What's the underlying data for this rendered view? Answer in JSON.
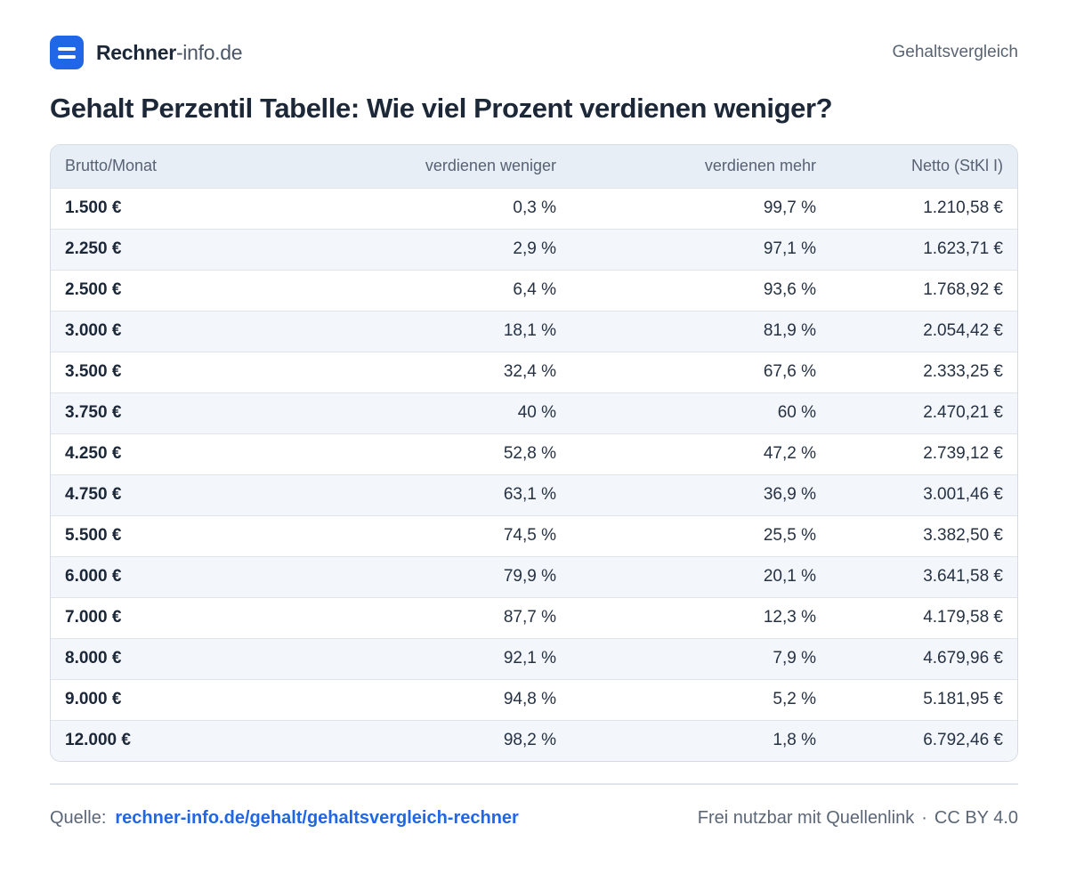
{
  "header": {
    "brand_strong": "Rechner",
    "brand_light": "-info.de",
    "nav_link": "Gehaltsvergleich"
  },
  "title": "Gehalt Perzentil Tabelle: Wie viel Prozent verdienen weniger?",
  "table": {
    "columns": [
      "Brutto/Monat",
      "verdienen weniger",
      "verdienen mehr",
      "Netto (StKl I)"
    ],
    "rows": [
      [
        "1.500 €",
        "0,3 %",
        "99,7 %",
        "1.210,58 €"
      ],
      [
        "2.250 €",
        "2,9 %",
        "97,1 %",
        "1.623,71 €"
      ],
      [
        "2.500 €",
        "6,4 %",
        "93,6 %",
        "1.768,92 €"
      ],
      [
        "3.000 €",
        "18,1 %",
        "81,9 %",
        "2.054,42 €"
      ],
      [
        "3.500 €",
        "32,4 %",
        "67,6 %",
        "2.333,25 €"
      ],
      [
        "3.750 €",
        "40 %",
        "60 %",
        "2.470,21 €"
      ],
      [
        "4.250 €",
        "52,8 %",
        "47,2 %",
        "2.739,12 €"
      ],
      [
        "4.750 €",
        "63,1 %",
        "36,9 %",
        "3.001,46 €"
      ],
      [
        "5.500 €",
        "74,5 %",
        "25,5 %",
        "3.382,50 €"
      ],
      [
        "6.000 €",
        "79,9 %",
        "20,1 %",
        "3.641,58 €"
      ],
      [
        "7.000 €",
        "87,7 %",
        "12,3 %",
        "4.179,58 €"
      ],
      [
        "8.000 €",
        "92,1 %",
        "7,9 %",
        "4.679,96 €"
      ],
      [
        "9.000 €",
        "94,8 %",
        "5,2 %",
        "5.181,95 €"
      ],
      [
        "12.000 €",
        "98,2 %",
        "1,8 %",
        "6.792,46 €"
      ]
    ]
  },
  "footer": {
    "source_label": "Quelle:",
    "source_link": "rechner-info.de/gehalt/gehaltsvergleich-rechner",
    "license_text": "Frei nutzbar mit Quellenlink",
    "separator": "·",
    "license_name": "CC BY 4.0"
  },
  "colors": {
    "accent": "#1f67e6",
    "header_bg": "#e8eef6",
    "stripe_bg": "#f3f6fa",
    "text_dark": "#1c2738"
  },
  "icons": {
    "logo": "logo-icon"
  }
}
